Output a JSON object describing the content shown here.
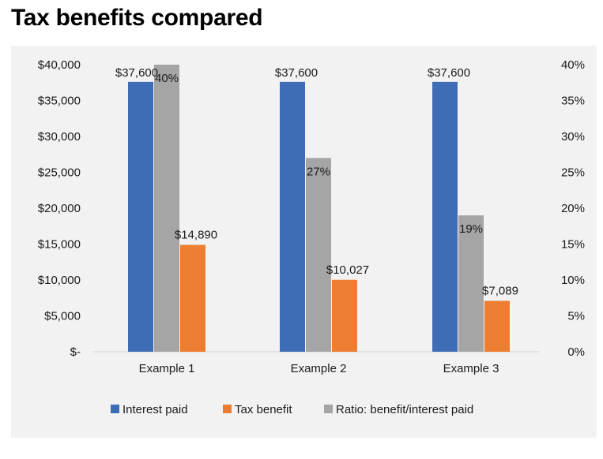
{
  "title": "Tax benefits compared",
  "chart_data": {
    "type": "bar",
    "categories": [
      "Example 1",
      "Example 2",
      "Example 3"
    ],
    "series": [
      {
        "name": "Interest paid",
        "axis": "left",
        "color": "#3e6db6",
        "values": [
          37600,
          37600,
          37600
        ],
        "labels": [
          "$37,600",
          "$37,600",
          "$37,600"
        ]
      },
      {
        "name": "Ratio: benefit/interest paid",
        "axis": "right",
        "color": "#a5a5a5",
        "values": [
          40,
          27,
          19
        ],
        "labels": [
          "40%",
          "27%",
          "19%"
        ]
      },
      {
        "name": "Tax benefit",
        "axis": "left",
        "color": "#ed7d31",
        "values": [
          14890,
          10027,
          7089
        ],
        "labels": [
          "$14,890",
          "$10,027",
          "$7,089"
        ]
      }
    ],
    "y_left": {
      "min": 0,
      "max": 40000,
      "ticks": [
        {
          "value": 0,
          "label": "$-"
        },
        {
          "value": 5000,
          "label": "$5,000"
        },
        {
          "value": 10000,
          "label": "$10,000"
        },
        {
          "value": 15000,
          "label": "$15,000"
        },
        {
          "value": 20000,
          "label": "$20,000"
        },
        {
          "value": 25000,
          "label": "$25,000"
        },
        {
          "value": 30000,
          "label": "$30,000"
        },
        {
          "value": 35000,
          "label": "$35,000"
        },
        {
          "value": 40000,
          "label": "$40,000"
        }
      ]
    },
    "y_right": {
      "min": 0,
      "max": 40,
      "ticks": [
        {
          "value": 0,
          "label": "0%"
        },
        {
          "value": 5,
          "label": "5%"
        },
        {
          "value": 10,
          "label": "10%"
        },
        {
          "value": 15,
          "label": "15%"
        },
        {
          "value": 20,
          "label": "20%"
        },
        {
          "value": 25,
          "label": "25%"
        },
        {
          "value": 30,
          "label": "30%"
        },
        {
          "value": 35,
          "label": "35%"
        },
        {
          "value": 40,
          "label": "40%"
        }
      ]
    },
    "legend": [
      {
        "name": "Interest paid",
        "color": "#3e6db6"
      },
      {
        "name": "Tax benefit",
        "color": "#ed7d31"
      },
      {
        "name": "Ratio: benefit/interest paid",
        "color": "#a5a5a5"
      }
    ],
    "legend_position": "bottom",
    "grid": false
  }
}
